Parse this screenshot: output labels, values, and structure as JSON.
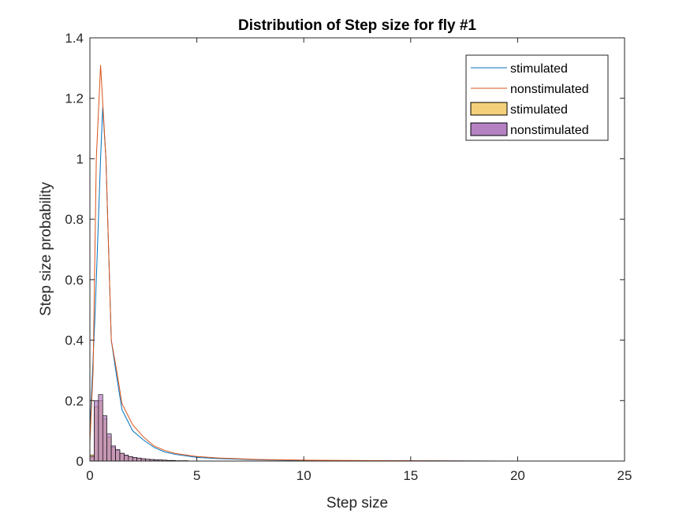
{
  "chart_data": {
    "type": "line",
    "title": "Distribution of Step size for fly #1",
    "xlabel": "Step size",
    "ylabel": "Step size probability",
    "xlim": [
      0,
      25
    ],
    "ylim": [
      0,
      1.4
    ],
    "xticks": [
      0,
      5,
      10,
      15,
      20,
      25
    ],
    "xtick_labels": [
      "0",
      "5",
      "10",
      "15",
      "20",
      "25"
    ],
    "yticks": [
      0,
      0.2,
      0.4,
      0.6,
      0.8,
      1,
      1.2,
      1.4
    ],
    "ytick_labels": [
      "0",
      "0.2",
      "0.4",
      "0.6",
      "0.8",
      "1",
      "1.2",
      "1.4"
    ],
    "grid": false,
    "legend_position": "top-right",
    "series": [
      {
        "name": "stimulated",
        "kind": "line",
        "color": "#0072BD",
        "x": [
          0,
          0.25,
          0.5,
          0.6,
          0.75,
          1.0,
          1.25,
          1.5,
          2.0,
          2.5,
          3.0,
          3.5,
          4.0,
          5.0,
          6.0,
          8.0,
          10.0,
          12.0,
          15.0,
          20.0,
          25.0
        ],
        "y": [
          0.1,
          0.5,
          1.0,
          1.17,
          1.0,
          0.4,
          0.28,
          0.17,
          0.1,
          0.07,
          0.045,
          0.03,
          0.022,
          0.012,
          0.008,
          0.004,
          0.002,
          0.001,
          0.001,
          0.0,
          0.0
        ]
      },
      {
        "name": "nonstimulated",
        "kind": "line",
        "color": "#D95319",
        "x": [
          0,
          0.15,
          0.3,
          0.5,
          0.75,
          1.0,
          1.25,
          1.5,
          2.0,
          2.5,
          3.0,
          3.5,
          4.0,
          5.0,
          6.0,
          8.0,
          10.0,
          12.0,
          15.0,
          20.0,
          25.0
        ],
        "y": [
          0.06,
          0.3,
          1.0,
          1.31,
          1.0,
          0.4,
          0.3,
          0.19,
          0.12,
          0.08,
          0.05,
          0.035,
          0.025,
          0.015,
          0.01,
          0.005,
          0.003,
          0.002,
          0.001,
          0.0,
          0.0
        ]
      },
      {
        "name": "stimulated",
        "kind": "histogram",
        "color": "#EDB120",
        "x": [
          0.1,
          0.3,
          0.5,
          0.7,
          0.9,
          1.1,
          1.3,
          1.5,
          1.7,
          1.9,
          2.1,
          2.3,
          2.5,
          2.7,
          2.9,
          3.1,
          3.3,
          3.5,
          3.7,
          3.9,
          4.1,
          4.3,
          4.5
        ],
        "y": [
          0.02,
          0.18,
          0.2,
          0.14,
          0.08,
          0.045,
          0.035,
          0.025,
          0.018,
          0.014,
          0.011,
          0.009,
          0.007,
          0.006,
          0.005,
          0.004,
          0.003,
          0.003,
          0.002,
          0.002,
          0.001,
          0.001,
          0.001
        ]
      },
      {
        "name": "nonstimulated",
        "kind": "histogram",
        "color": "#7E2F8E",
        "x": [
          0.1,
          0.3,
          0.5,
          0.7,
          0.9,
          1.1,
          1.3,
          1.5,
          1.7,
          1.9,
          2.1,
          2.3,
          2.5,
          2.7,
          2.9,
          3.1,
          3.3,
          3.5,
          3.7,
          3.9,
          4.1,
          4.3,
          4.5
        ],
        "y": [
          0.015,
          0.2,
          0.22,
          0.15,
          0.09,
          0.05,
          0.038,
          0.026,
          0.02,
          0.015,
          0.012,
          0.01,
          0.008,
          0.006,
          0.005,
          0.004,
          0.004,
          0.003,
          0.002,
          0.002,
          0.001,
          0.001,
          0.001
        ]
      }
    ]
  }
}
